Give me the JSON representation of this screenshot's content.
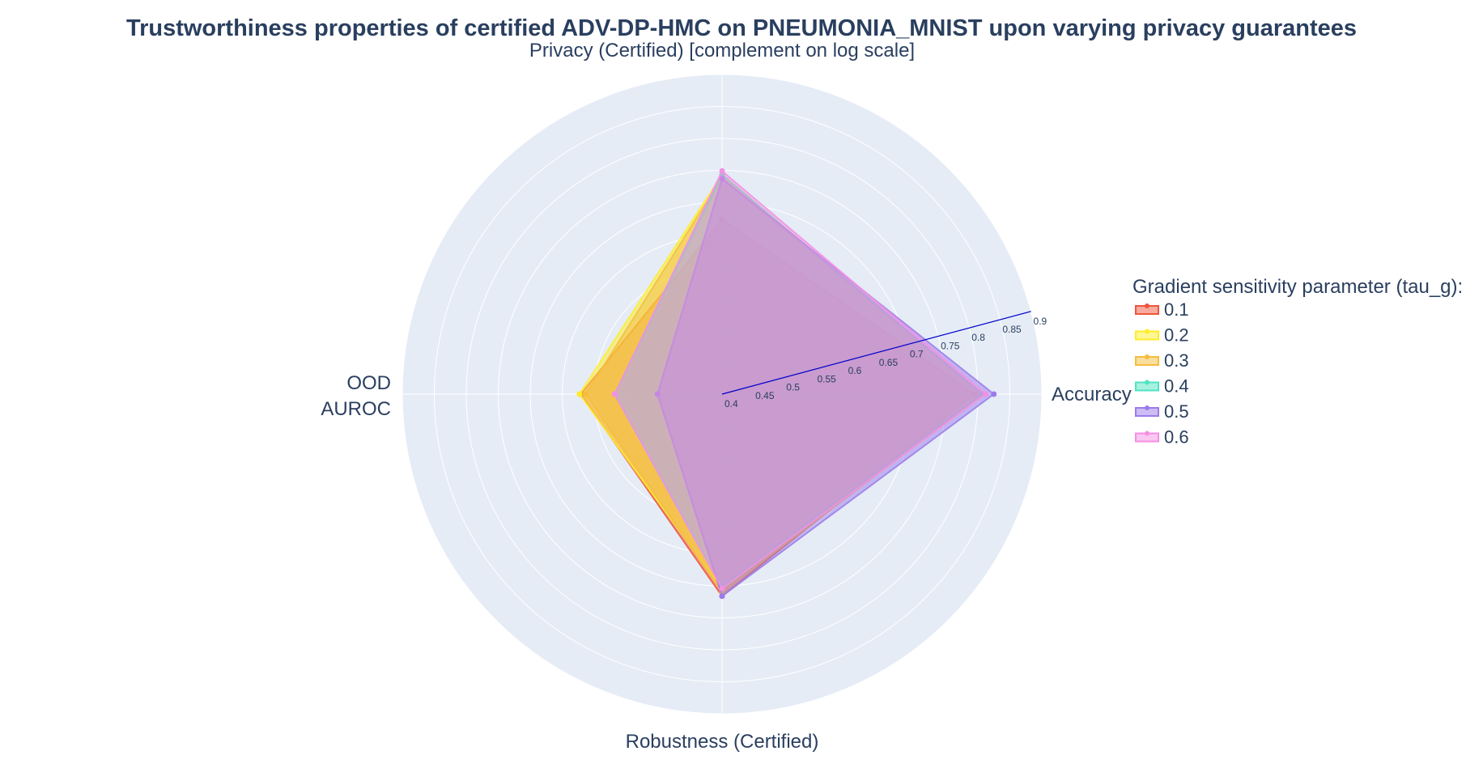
{
  "chart_data": {
    "type": "radar",
    "title": "Trustworthiness properties of certified ADV-DP-HMC on PNEUMONIA_MNIST upon varying privacy guarantees",
    "axes": [
      {
        "key": "accuracy",
        "label": "Accuracy"
      },
      {
        "key": "privacy",
        "label": "Privacy (Certified) [complement on log scale]"
      },
      {
        "key": "ood",
        "label": "OOD\nAUROC"
      },
      {
        "key": "robustness",
        "label": "Robustness (Certified)"
      }
    ],
    "radial_range": [
      0.4,
      0.9
    ],
    "radial_ticks": [
      "0.4",
      "0.45",
      "0.5",
      "0.55",
      "0.6",
      "0.65",
      "0.7",
      "0.75",
      "0.8",
      "0.85",
      "0.9"
    ],
    "radial_axis_angle_deg": 15,
    "grid": true,
    "legend": {
      "title": "Gradient sensitivity parameter (tau_g):",
      "placement": "right"
    },
    "series": [
      {
        "name": "0.1",
        "color": "#EF553B",
        "accuracy": 0.795,
        "privacy": 0.673,
        "ood": 0.621,
        "robustness": 0.716
      },
      {
        "name": "0.2",
        "color": "#FFED2A",
        "accuracy": 0.807,
        "privacy": 0.743,
        "ood": 0.623,
        "robustness": 0.705
      },
      {
        "name": "0.3",
        "color": "#F4BE3C",
        "accuracy": 0.807,
        "privacy": 0.739,
        "ood": 0.613,
        "robustness": 0.71
      },
      {
        "name": "0.4",
        "color": "#50E3C2",
        "accuracy": 0.807,
        "privacy": 0.743,
        "ood": 0.568,
        "robustness": 0.701
      },
      {
        "name": "0.5",
        "color": "#9B7BEA",
        "accuracy": 0.825,
        "privacy": 0.737,
        "ood": 0.501,
        "robustness": 0.716
      },
      {
        "name": "0.6",
        "color": "#F48FE3",
        "accuracy": 0.812,
        "privacy": 0.749,
        "ood": 0.568,
        "robustness": 0.704
      }
    ]
  }
}
